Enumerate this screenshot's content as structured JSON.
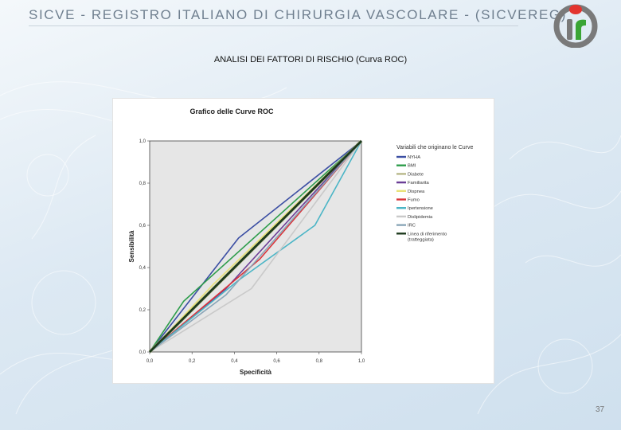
{
  "header": {
    "title": "SICVE - REGISTRO ITALIANO DI CHIRURGIA VASCOLARE -  (SICVEREG)",
    "logo_colors": {
      "red": "#e3342f",
      "green": "#3aa535",
      "gray": "#7a7a7a"
    }
  },
  "slide": {
    "title": "ANALISI DEI FATTORI DI RISCHIO (Curva ROC)",
    "page_number": "37"
  },
  "chart_data": {
    "type": "line",
    "title": "Grafico delle Curve ROC",
    "xlabel": "Specificità",
    "ylabel": "Sensibilità",
    "xlim": [
      0,
      1
    ],
    "ylim": [
      0,
      1
    ],
    "xticks": [
      0,
      0.2,
      0.4,
      0.6,
      0.8,
      1.0
    ],
    "yticks": [
      0,
      0.2,
      0.4,
      0.6,
      0.8,
      1.0
    ],
    "xtick_labels": [
      "0,0",
      "0,2",
      "0,4",
      "0,6",
      "0,8",
      "1,0"
    ],
    "ytick_labels": [
      "0,0",
      "0,2",
      "0,4",
      "0,6",
      "0,8",
      "1,0"
    ],
    "legend_title": "Variabili che originano le Curve",
    "legend_position": "right",
    "plot_background": "#e6e6e6",
    "series": [
      {
        "name": "NYHA",
        "color": "#3b4ea3",
        "x": [
          0,
          0.42,
          1
        ],
        "y": [
          0,
          0.54,
          1
        ]
      },
      {
        "name": "BMI",
        "color": "#2e9d4b",
        "x": [
          0,
          0.16,
          1
        ],
        "y": [
          0,
          0.24,
          1
        ]
      },
      {
        "name": "Diabete",
        "color": "#b8b88a",
        "x": [
          0,
          1
        ],
        "y": [
          0,
          1
        ]
      },
      {
        "name": "Familiarita",
        "color": "#6b3e96",
        "x": [
          0,
          0.36,
          1
        ],
        "y": [
          0,
          0.3,
          1
        ]
      },
      {
        "name": "Dispnea",
        "color": "#e9e27a",
        "x": [
          0,
          0.3,
          1
        ],
        "y": [
          0,
          0.32,
          1
        ]
      },
      {
        "name": "Fumo",
        "color": "#d9353a",
        "x": [
          0,
          0.52,
          1
        ],
        "y": [
          0,
          0.44,
          1
        ]
      },
      {
        "name": "Ipertensione",
        "color": "#4bb5c6",
        "x": [
          0,
          0.42,
          0.78,
          1
        ],
        "y": [
          0,
          0.34,
          0.6,
          1
        ]
      },
      {
        "name": "Dislipidemia",
        "color": "#c9c9c9",
        "x": [
          0,
          0.48,
          1
        ],
        "y": [
          0,
          0.3,
          1
        ]
      },
      {
        "name": "IRC",
        "color": "#8aa6b8",
        "x": [
          0,
          0.36,
          1
        ],
        "y": [
          0,
          0.27,
          1
        ]
      },
      {
        "name": "Linea di riferimento (tratteggiata)",
        "color": "#1d3a1d",
        "x": [
          0,
          1
        ],
        "y": [
          0,
          1
        ]
      }
    ]
  }
}
